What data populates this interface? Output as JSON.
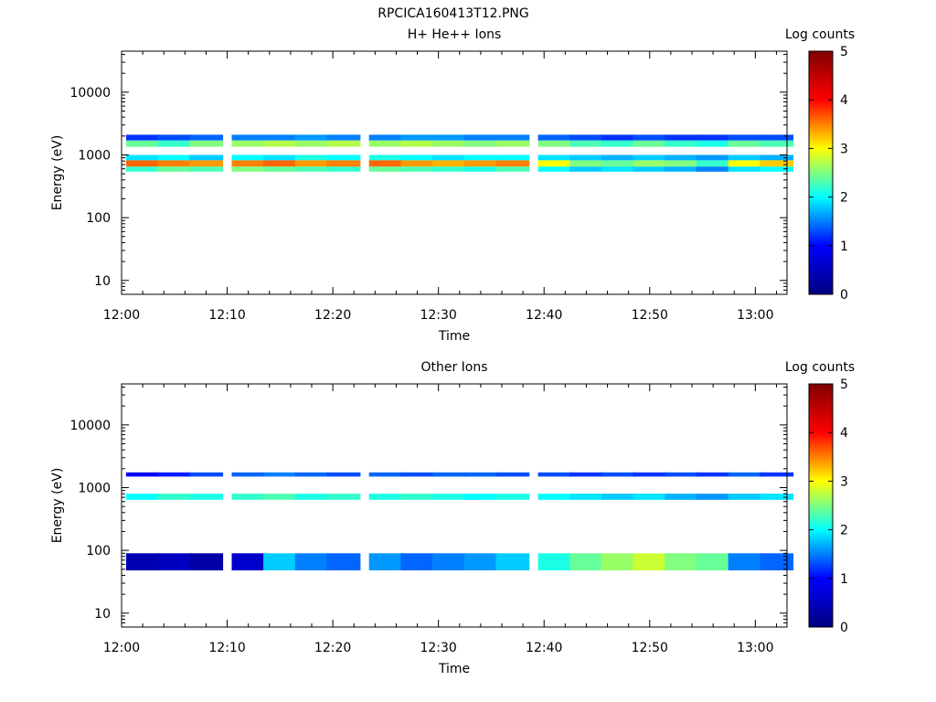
{
  "figure": {
    "title": "RPCICA160413T12.PNG"
  },
  "colors": {
    "colormap": [
      "#000080",
      "#0000ff",
      "#00ffff",
      "#ffff00",
      "#ff0000",
      "#800000"
    ],
    "axis": "#000000",
    "background": "#ffffff"
  },
  "chart_data": [
    {
      "type": "heatmap",
      "title": "H+ He++ Ions",
      "xlabel": "Time",
      "ylabel": "Energy (eV)",
      "xticks": [
        "12:00",
        "12:10",
        "12:20",
        "12:30",
        "12:40",
        "12:50",
        "13:00"
      ],
      "yticks": [
        "10",
        "100",
        "1000",
        "10000"
      ],
      "xlim": [
        "12:00",
        "13:03"
      ],
      "ylim": [
        6,
        45000
      ],
      "yscale": "log",
      "colorbar": {
        "label": "Log counts",
        "range": [
          0,
          5
        ],
        "ticks": [
          "0",
          "1",
          "2",
          "3",
          "4",
          "5"
        ]
      },
      "time_columns": [
        "12:02",
        "12:05",
        "12:08",
        "12:12",
        "12:15",
        "12:18",
        "12:21",
        "12:25",
        "12:28",
        "12:31",
        "12:34",
        "12:37",
        "12:41",
        "12:44",
        "12:47",
        "12:50",
        "12:53",
        "12:56",
        "12:59",
        "13:02"
      ],
      "bands": [
        {
          "energy_range": [
            1700,
            2100
          ],
          "log_counts": [
            1.2,
            1.3,
            1.4,
            1.5,
            1.5,
            1.6,
            1.5,
            1.5,
            1.6,
            1.6,
            1.5,
            1.5,
            1.4,
            1.3,
            1.2,
            1.3,
            1.2,
            1.2,
            1.3,
            1.3
          ]
        },
        {
          "energy_range": [
            1350,
            1700
          ],
          "log_counts": [
            2.4,
            2.2,
            2.5,
            2.6,
            2.7,
            2.6,
            2.7,
            2.6,
            2.7,
            2.6,
            2.5,
            2.6,
            2.5,
            2.3,
            2.2,
            2.4,
            2.2,
            2.1,
            2.4,
            2.3
          ]
        },
        {
          "energy_range": [
            820,
            1000
          ],
          "log_counts": [
            1.9,
            2.0,
            1.8,
            2.0,
            1.9,
            2.1,
            2.0,
            2.1,
            2.0,
            1.9,
            2.0,
            2.0,
            1.9,
            1.8,
            1.7,
            1.8,
            1.7,
            1.6,
            1.8,
            1.7
          ]
        },
        {
          "energy_range": [
            650,
            820
          ],
          "log_counts": [
            3.6,
            3.5,
            3.4,
            3.5,
            3.6,
            3.4,
            3.5,
            3.6,
            3.4,
            3.3,
            3.4,
            3.5,
            3.0,
            2.5,
            2.4,
            2.6,
            2.5,
            2.2,
            3.0,
            3.2
          ]
        },
        {
          "energy_range": [
            540,
            650
          ],
          "log_counts": [
            2.2,
            2.4,
            2.3,
            2.5,
            2.4,
            2.3,
            2.2,
            2.4,
            2.3,
            2.2,
            2.1,
            2.3,
            2.0,
            1.8,
            1.9,
            1.8,
            1.7,
            1.5,
            1.9,
            2.0
          ]
        }
      ]
    },
    {
      "type": "heatmap",
      "title": "Other Ions",
      "xlabel": "Time",
      "ylabel": "Energy (eV)",
      "xticks": [
        "12:00",
        "12:10",
        "12:20",
        "12:30",
        "12:40",
        "12:50",
        "13:00"
      ],
      "yticks": [
        "10",
        "100",
        "1000",
        "10000"
      ],
      "xlim": [
        "12:00",
        "13:03"
      ],
      "ylim": [
        6,
        45000
      ],
      "yscale": "log",
      "colorbar": {
        "label": "Log counts",
        "range": [
          0,
          5
        ],
        "ticks": [
          "0",
          "1",
          "2",
          "3",
          "4",
          "5"
        ]
      },
      "time_columns": [
        "12:02",
        "12:05",
        "12:08",
        "12:12",
        "12:15",
        "12:18",
        "12:21",
        "12:25",
        "12:28",
        "12:31",
        "12:34",
        "12:37",
        "12:41",
        "12:44",
        "12:47",
        "12:50",
        "12:53",
        "12:56",
        "12:59",
        "13:02"
      ],
      "bands": [
        {
          "energy_range": [
            1500,
            1750
          ],
          "log_counts": [
            0.9,
            1.1,
            1.3,
            1.4,
            1.5,
            1.4,
            1.3,
            1.4,
            1.3,
            1.4,
            1.4,
            1.3,
            1.3,
            1.2,
            1.3,
            1.2,
            1.3,
            1.2,
            1.4,
            1.2
          ]
        },
        {
          "energy_range": [
            640,
            800
          ],
          "log_counts": [
            2.0,
            2.2,
            2.1,
            2.2,
            2.3,
            2.1,
            2.2,
            2.1,
            2.2,
            2.1,
            2.0,
            2.1,
            2.0,
            1.9,
            1.8,
            1.9,
            1.7,
            1.6,
            1.8,
            1.9
          ]
        },
        {
          "energy_range": [
            48,
            90
          ],
          "log_counts": [
            0.4,
            0.5,
            0.3,
            0.6,
            1.8,
            1.5,
            1.4,
            1.6,
            1.4,
            1.5,
            1.6,
            1.8,
            2.1,
            2.4,
            2.6,
            2.8,
            2.5,
            2.4,
            1.5,
            1.4
          ]
        }
      ]
    }
  ]
}
